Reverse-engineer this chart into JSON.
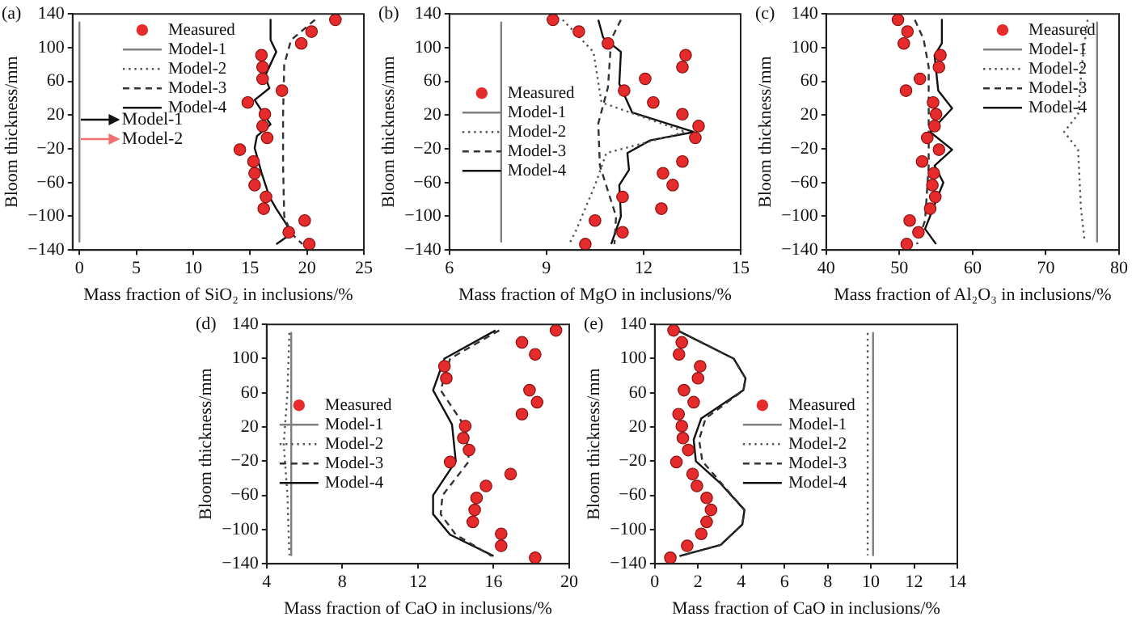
{
  "chart_data": [
    {
      "type": "scatter",
      "title": "(a)",
      "xlabel": "Mass fraction of SiO₂ in inclusions/%",
      "ylabel": "Bloom thickness/mm",
      "xlim": [
        -0.6,
        25
      ],
      "xticks": [
        0,
        5,
        10,
        15,
        20,
        25
      ],
      "ylim": [
        -140,
        140
      ],
      "yticks": [
        -140,
        -100,
        -60,
        -20,
        20,
        60,
        100,
        140
      ],
      "grid": false,
      "legend": "top",
      "annotations": [
        "Model-1",
        "Model-2"
      ],
      "series": [
        {
          "name": "Measured",
          "type": "scatter",
          "marker": "circle",
          "color": "#e52b2b",
          "x": [
            22.5,
            20.4,
            19.5,
            16.0,
            16.1,
            16.1,
            17.8,
            14.8,
            16.3,
            16.1,
            16.5,
            14.1,
            15.3,
            15.4,
            15.4,
            16.4,
            16.2,
            19.8,
            18.4,
            20.2
          ],
          "values": [
            133,
            119,
            105,
            91,
            77,
            63,
            49,
            35,
            21,
            7,
            -7,
            -21,
            -35,
            -49,
            -63,
            -77,
            -91,
            -105,
            -119,
            -133
          ]
        },
        {
          "name": "Model-1",
          "type": "line",
          "line_style": "solid",
          "color": "#808080",
          "x": [
            0,
            0
          ],
          "values": [
            130,
            -130
          ]
        },
        {
          "name": "Model-2",
          "type": "line",
          "line_style": "dotted",
          "color": "#555555",
          "x": [
            null,
            null
          ],
          "values": [
            null,
            null
          ]
        },
        {
          "name": "Model-3",
          "type": "line",
          "line_style": "dashed",
          "color": "#333333",
          "x": [
            20.7,
            18.6,
            18.0,
            17.9,
            17.9,
            18.0,
            18.6,
            19.6
          ],
          "values": [
            133,
            109,
            80,
            20,
            -40,
            -100,
            -120,
            -133
          ]
        },
        {
          "name": "Model-4",
          "type": "line",
          "line_style": "solid",
          "color": "#111111",
          "x": [
            16.8,
            16.8,
            17.3,
            16.3,
            16.7,
            15.4,
            16.8,
            15.6,
            15.4,
            16.0,
            16.7,
            17.3,
            18.7,
            17.3
          ],
          "values": [
            133,
            109,
            95,
            66,
            52,
            38,
            9,
            -5,
            -19,
            -48,
            -77,
            -91,
            -120,
            -133
          ]
        }
      ]
    },
    {
      "type": "scatter",
      "title": "(b)",
      "xlabel": "Mass fraction of MgO in inclusions/%",
      "ylabel": "Bloom thickness/mm",
      "xlim": [
        6,
        15
      ],
      "xticks": [
        6,
        9,
        12,
        15
      ],
      "ylim": [
        -140,
        140
      ],
      "yticks": [
        -140,
        -100,
        -60,
        -20,
        20,
        60,
        100,
        140
      ],
      "grid": false,
      "legend": "left",
      "series": [
        {
          "name": "Measured",
          "type": "scatter",
          "marker": "circle",
          "color": "#e52b2b",
          "x": [
            9.2,
            10.0,
            10.9,
            13.3,
            13.2,
            12.05,
            11.4,
            12.3,
            13.2,
            13.7,
            13.6,
            13.2,
            12.6,
            12.9,
            11.35,
            12.55,
            10.5,
            11.35,
            10.2
          ],
          "values": [
            133,
            119,
            105,
            91,
            77,
            63,
            49,
            35,
            21,
            7,
            -7,
            -35,
            -49,
            -63,
            -77,
            -91,
            -105,
            -119,
            -133
          ]
        },
        {
          "name": "Model-1",
          "type": "line",
          "line_style": "solid",
          "color": "#808080",
          "x": [
            7.6,
            7.6
          ],
          "values": [
            130,
            -130
          ]
        },
        {
          "name": "Model-2",
          "type": "line",
          "line_style": "dotted",
          "color": "#555555",
          "x": [
            9.5,
            10.45,
            10.7,
            13.3,
            10.85,
            10.5,
            9.9,
            9.7
          ],
          "values": [
            133,
            95,
            35,
            0,
            -25,
            -63,
            -118,
            -133
          ]
        },
        {
          "name": "Model-3",
          "type": "line",
          "line_style": "dashed",
          "color": "#333333",
          "x": [
            11.3,
            11.0,
            10.9,
            10.6,
            10.65,
            11.15,
            11.1
          ],
          "values": [
            133,
            110,
            53,
            10,
            -40,
            -100,
            -133
          ]
        },
        {
          "name": "Model-4",
          "type": "line",
          "line_style": "solid",
          "color": "#111111",
          "x": [
            10.6,
            10.75,
            11.3,
            11.25,
            11.65,
            13.55,
            12.2,
            11.5,
            11.55,
            11.25,
            11.3,
            11.0
          ],
          "values": [
            133,
            112,
            95,
            57,
            23,
            0,
            -10,
            -25,
            -45,
            -63,
            -100,
            -133
          ]
        }
      ]
    },
    {
      "type": "scatter",
      "title": "(c)",
      "xlabel": "Mass fraction of Al₂O₃ in inclusions/%",
      "ylabel": "Bloom thickness/mm",
      "xlim": [
        40,
        80
      ],
      "xticks": [
        40,
        50,
        60,
        70,
        80
      ],
      "ylim": [
        -140,
        140
      ],
      "yticks": [
        -140,
        -100,
        -60,
        -20,
        20,
        60,
        100,
        140
      ],
      "grid": false,
      "legend": "top right",
      "series": [
        {
          "name": "Measured",
          "type": "scatter",
          "marker": "circle",
          "color": "#e52b2b",
          "x": [
            49.8,
            51.1,
            50.6,
            55.6,
            55.4,
            52.8,
            50.9,
            54.6,
            55.0,
            54.8,
            53.8,
            55.4,
            53.1,
            54.7,
            54.5,
            54.9,
            54.2,
            51.4,
            52.6,
            51.0
          ],
          "values": [
            133,
            119,
            105,
            91,
            77,
            63,
            49,
            35,
            21,
            7,
            -7,
            -21,
            -35,
            -49,
            -63,
            -77,
            -91,
            -105,
            -119,
            -133
          ]
        },
        {
          "name": "Model-1",
          "type": "line",
          "line_style": "solid",
          "color": "#808080",
          "x": [
            77.0,
            77.0
          ],
          "values": [
            130,
            -130
          ]
        },
        {
          "name": "Model-2",
          "type": "line",
          "line_style": "dotted",
          "color": "#555555",
          "x": [
            75.7,
            74.9,
            74.4,
            72.5,
            74.4,
            74.8,
            75.3
          ],
          "values": [
            133,
            77,
            21,
            0,
            -21,
            -91,
            -130
          ]
        },
        {
          "name": "Model-3",
          "type": "line",
          "line_style": "dashed",
          "color": "#333333",
          "x": [
            52.1,
            53.3,
            54.0,
            54.0,
            53.5,
            52.4
          ],
          "values": [
            133,
            110,
            77,
            -40,
            -105,
            -133
          ]
        },
        {
          "name": "Model-4",
          "type": "line",
          "line_style": "solid",
          "color": "#111111",
          "x": [
            55.8,
            55.8,
            54.8,
            55.3,
            57.2,
            54.2,
            57.2,
            54.8,
            56.0,
            53.5,
            55.0
          ],
          "values": [
            133,
            105,
            91,
            49,
            28,
            0,
            -21,
            -40,
            -60,
            -115,
            -133
          ]
        }
      ]
    },
    {
      "type": "scatter",
      "title": "(d)",
      "xlabel": "Mass fraction of CaO in inclusions/%",
      "ylabel": "Bloom thickness/mm",
      "xlim": [
        4,
        20
      ],
      "xticks": [
        4,
        8,
        12,
        16,
        20
      ],
      "ylim": [
        -140,
        140
      ],
      "yticks": [
        -140,
        -100,
        -60,
        -20,
        20,
        60,
        100,
        140
      ],
      "grid": false,
      "legend": "left",
      "series": [
        {
          "name": "Measured",
          "type": "scatter",
          "marker": "circle",
          "color": "#e52b2b",
          "x": [
            19.3,
            17.5,
            18.2,
            13.4,
            13.5,
            17.9,
            18.3,
            17.5,
            14.5,
            14.4,
            14.7,
            13.7,
            16.9,
            15.6,
            15.1,
            15.0,
            14.9,
            16.4,
            16.4,
            18.2
          ],
          "values": [
            133,
            119,
            105,
            91,
            77,
            63,
            49,
            35,
            21,
            7,
            -7,
            -21,
            -35,
            -49,
            -63,
            -77,
            -91,
            -105,
            -119,
            -133
          ]
        },
        {
          "name": "Model-1",
          "type": "line",
          "line_style": "solid",
          "color": "#808080",
          "x": [
            5.3,
            5.3
          ],
          "values": [
            130,
            -130
          ]
        },
        {
          "name": "Model-2",
          "type": "line",
          "line_style": "dotted",
          "color": "#555555",
          "x": [
            5.2,
            5.1,
            4.9,
            5.1,
            5.2
          ],
          "values": [
            130,
            60,
            0,
            -60,
            -130
          ]
        },
        {
          "name": "Model-3",
          "type": "line",
          "line_style": "dashed",
          "color": "#333333",
          "x": [
            16.3,
            13.7,
            13.2,
            14.5,
            14.7,
            13.3,
            13.2,
            14.0,
            15.9
          ],
          "values": [
            133,
            100,
            63,
            20,
            -20,
            -60,
            -82,
            -106,
            -131
          ]
        },
        {
          "name": "Model-4",
          "type": "line",
          "line_style": "solid",
          "color": "#111111",
          "x": [
            16.1,
            13.4,
            12.8,
            13.8,
            14.0,
            12.8,
            12.8,
            13.7,
            16.0
          ],
          "values": [
            133,
            100,
            63,
            23,
            -20,
            -60,
            -82,
            -106,
            -131
          ]
        }
      ]
    },
    {
      "type": "scatter",
      "title": "(e)",
      "xlabel": "Mass fraction of CaO in inclusions/%",
      "ylabel": "Bloom thickness/mm",
      "xlim": [
        0,
        14
      ],
      "xticks": [
        0,
        2,
        4,
        6,
        8,
        10,
        12,
        14
      ],
      "ylim": [
        -140,
        140
      ],
      "yticks": [
        -140,
        -100,
        -60,
        -20,
        20,
        60,
        100,
        140
      ],
      "grid": false,
      "legend": "center",
      "series": [
        {
          "name": "Measured",
          "type": "scatter",
          "marker": "circle",
          "color": "#e52b2b",
          "x": [
            0.87,
            1.25,
            1.12,
            2.1,
            2.0,
            1.35,
            1.8,
            1.1,
            1.25,
            1.3,
            1.55,
            1.0,
            1.75,
            1.95,
            2.4,
            2.6,
            2.4,
            2.15,
            1.5,
            0.72
          ],
          "values": [
            133,
            119,
            105,
            91,
            77,
            63,
            49,
            35,
            21,
            7,
            -7,
            -21,
            -35,
            -49,
            -63,
            -77,
            -91,
            -105,
            -119,
            -133
          ]
        },
        {
          "name": "Model-1",
          "type": "line",
          "line_style": "solid",
          "color": "#808080",
          "x": [
            10.1,
            10.1
          ],
          "values": [
            130,
            -130
          ]
        },
        {
          "name": "Model-2",
          "type": "line",
          "line_style": "dotted",
          "color": "#555555",
          "x": [
            9.85,
            9.85
          ],
          "values": [
            130,
            -130
          ]
        },
        {
          "name": "Model-3",
          "type": "line",
          "line_style": "dashed",
          "color": "#333333",
          "x": [
            1.05,
            3.65,
            4.2,
            4.1,
            2.35,
            2.05,
            2.2,
            3.05,
            4.15,
            4.05,
            3.05,
            1.15
          ],
          "values": [
            133,
            100,
            77,
            63,
            30,
            5,
            -20,
            -45,
            -77,
            -94,
            -118,
            -131
          ]
        },
        {
          "name": "Model-4",
          "type": "line",
          "line_style": "solid",
          "color": "#111111",
          "x": [
            1.05,
            3.65,
            4.2,
            4.1,
            2.15,
            1.8,
            1.9,
            3.0,
            4.15,
            4.05,
            3.05,
            1.15
          ],
          "values": [
            133,
            100,
            77,
            63,
            30,
            5,
            -20,
            -45,
            -77,
            -94,
            -118,
            -131
          ]
        }
      ]
    }
  ]
}
